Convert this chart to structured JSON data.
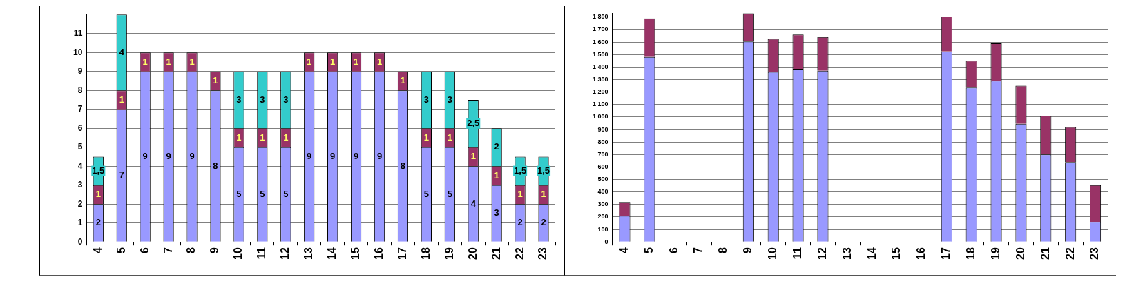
{
  "chart_data": [
    {
      "type": "bar",
      "stacked": true,
      "categories": [
        "4",
        "5",
        "6",
        "7",
        "8",
        "9",
        "10",
        "11",
        "12",
        "13",
        "14",
        "15",
        "16",
        "17",
        "18",
        "19",
        "20",
        "21",
        "22",
        "23"
      ],
      "series": [
        {
          "color": "#9999ff",
          "values": [
            2,
            7,
            9,
            9,
            9,
            8,
            5,
            5,
            5,
            9,
            9,
            9,
            9,
            8,
            5,
            5,
            4,
            3,
            2,
            2
          ],
          "value_labels": [
            "2",
            "7",
            "9",
            "9",
            "9",
            "8",
            "5",
            "5",
            "5",
            "9",
            "9",
            "9",
            "9",
            "8",
            "5",
            "5",
            "4",
            "3",
            "2",
            "2"
          ]
        },
        {
          "color": "#993366",
          "values": [
            1,
            1,
            1,
            1,
            1,
            1,
            1,
            1,
            1,
            1,
            1,
            1,
            1,
            1,
            1,
            1,
            1,
            1,
            1,
            1
          ],
          "value_labels": [
            "1",
            "1",
            "1",
            "1",
            "1",
            "1",
            "1",
            "1",
            "1",
            "1",
            "1",
            "1",
            "1",
            "1",
            "1",
            "1",
            "1",
            "1",
            "1",
            "1"
          ]
        },
        {
          "color": "#33cccc",
          "values": [
            1.5,
            4,
            null,
            null,
            null,
            null,
            3,
            3,
            3,
            null,
            null,
            null,
            null,
            null,
            3,
            3,
            2.5,
            2,
            1.5,
            1.5
          ],
          "value_labels": [
            "1,5",
            "4",
            null,
            null,
            null,
            null,
            "3",
            "3",
            "3",
            null,
            null,
            null,
            null,
            null,
            "3",
            "3",
            "2,5",
            "2",
            "1,5",
            "1,5"
          ]
        }
      ],
      "ylim": [
        0,
        12
      ],
      "yticks": [
        0,
        1,
        2,
        3,
        4,
        5,
        6,
        7,
        8,
        9,
        10,
        11
      ],
      "grid": "y",
      "legend": false
    },
    {
      "type": "bar",
      "stacked": true,
      "categories": [
        "4",
        "5",
        "6",
        "7",
        "8",
        "9",
        "10",
        "11",
        "12",
        "13",
        "14",
        "15",
        "16",
        "17",
        "18",
        "19",
        "20",
        "21",
        "22",
        "23"
      ],
      "series": [
        {
          "color": "#9999ff",
          "values": [
            210,
            1480,
            null,
            null,
            null,
            1605,
            1360,
            1385,
            1370,
            null,
            null,
            null,
            null,
            1525,
            1235,
            1290,
            945,
            700,
            640,
            160
          ]
        },
        {
          "color": "#993366",
          "values": [
            110,
            310,
            null,
            null,
            null,
            225,
            265,
            275,
            270,
            null,
            null,
            null,
            null,
            280,
            215,
            300,
            305,
            310,
            280,
            295
          ]
        }
      ],
      "ylim": [
        0,
        1830
      ],
      "yticks": [
        0,
        100,
        200,
        300,
        400,
        500,
        600,
        700,
        800,
        900,
        {
          "value": 1000,
          "label": "1 000"
        },
        {
          "value": 1100,
          "label": "1 100"
        },
        {
          "value": 1200,
          "label": "1 200"
        },
        {
          "value": 1300,
          "label": "1 300"
        },
        {
          "value": 1400,
          "label": "1 400"
        },
        {
          "value": 1500,
          "label": "1 500"
        },
        {
          "value": 1600,
          "label": "1 600"
        },
        {
          "value": 1700,
          "label": "1 700"
        },
        {
          "value": 1800,
          "label": "1 800"
        }
      ],
      "grid": "y",
      "legend": false
    }
  ]
}
